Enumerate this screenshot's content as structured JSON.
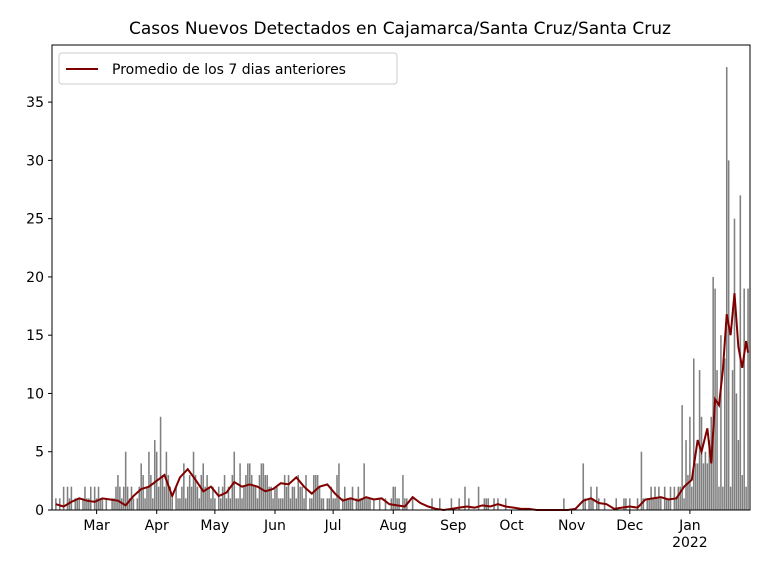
{
  "chart_data": {
    "type": "bar_line",
    "title": "Casos Nuevos Detectados en Cajamarca/Santa Cruz/Santa Cruz",
    "x": [
      38,
      39,
      40,
      41,
      42,
      43,
      44,
      45,
      46,
      47,
      48,
      49,
      50,
      51,
      52,
      53,
      54,
      55,
      56,
      57,
      58,
      59,
      60,
      61,
      62,
      63,
      64,
      65,
      66,
      67,
      68,
      69,
      70,
      71,
      72,
      73,
      74,
      75,
      76,
      77,
      78,
      79,
      80,
      81,
      82,
      83,
      84,
      85,
      86,
      87,
      88,
      89,
      90,
      91,
      92,
      93,
      94,
      95,
      96,
      97,
      98,
      99,
      100,
      101,
      102,
      103,
      104,
      105,
      106,
      107,
      108,
      109,
      110,
      111,
      112,
      113,
      114,
      115,
      116,
      117,
      118,
      119,
      120,
      121,
      122,
      123,
      124,
      125,
      126,
      127,
      128,
      129,
      130,
      131,
      132,
      133,
      134,
      135,
      136,
      137,
      138,
      139,
      140,
      141,
      142,
      143,
      144,
      145,
      146,
      147,
      148,
      149,
      150,
      151,
      152,
      153,
      154,
      155,
      156,
      157,
      158,
      159,
      160,
      161,
      162,
      163,
      164,
      165,
      166,
      167,
      168,
      169,
      170,
      171,
      172,
      173,
      174,
      175,
      176,
      177,
      178,
      179,
      180,
      181,
      182,
      183,
      184,
      185,
      186,
      187,
      188,
      189,
      190,
      191,
      192,
      193,
      194,
      195,
      196,
      197,
      198,
      199,
      200,
      201,
      202,
      203,
      204,
      205,
      206,
      207,
      208,
      209,
      210,
      211,
      212,
      213,
      214,
      215,
      216,
      217,
      218,
      219,
      220,
      221,
      222,
      223,
      224,
      225,
      226,
      227,
      228,
      229,
      230,
      231,
      232,
      233,
      234,
      235,
      236,
      237,
      238,
      239,
      240,
      241,
      242,
      243,
      244,
      245,
      246,
      247,
      248,
      249,
      250,
      251,
      252,
      253,
      254,
      255,
      256,
      257,
      258,
      259,
      260,
      261,
      262,
      263,
      264,
      265,
      266,
      267,
      268,
      269,
      270,
      271,
      272,
      273,
      274,
      275,
      276,
      277,
      278,
      279,
      280,
      281,
      282,
      283,
      284,
      285,
      286,
      287,
      288,
      289,
      290,
      291,
      292,
      293,
      294,
      295,
      296,
      297,
      298,
      299,
      300,
      301,
      302,
      303,
      304,
      305,
      306,
      307,
      308,
      309,
      310,
      311,
      312,
      313,
      314,
      315,
      316,
      317,
      318,
      319,
      320,
      321,
      322,
      323,
      324,
      325,
      326,
      327,
      328,
      329,
      330,
      331,
      332,
      333,
      334,
      335,
      336,
      337,
      338,
      339,
      340,
      341,
      342,
      343,
      344,
      345,
      346,
      347,
      348,
      349,
      350,
      351,
      352,
      353,
      354,
      355,
      356,
      357,
      358,
      359,
      360,
      361,
      362,
      363,
      364,
      365,
      366,
      367,
      368,
      369,
      370,
      371,
      372,
      373,
      374,
      375,
      376,
      377,
      378,
      379,
      380,
      381,
      382,
      383,
      384,
      385,
      386,
      387,
      388,
      389,
      390,
      391,
      392,
      393,
      394,
      395
    ],
    "values": [
      1,
      0,
      1,
      0,
      2,
      0,
      2,
      1,
      2,
      0,
      1,
      1,
      1,
      0,
      1,
      2,
      1,
      1,
      2,
      0,
      2,
      1,
      2,
      1,
      1,
      0,
      1,
      0,
      0,
      1,
      1,
      2,
      3,
      2,
      1,
      2,
      5,
      2,
      1,
      2,
      1,
      0,
      1,
      2,
      4,
      3,
      1,
      2,
      5,
      3,
      1,
      6,
      5,
      2,
      8,
      3,
      2,
      5,
      3,
      2,
      1,
      0,
      2,
      1,
      1,
      2,
      4,
      1,
      2,
      3,
      2,
      5,
      3,
      2,
      1,
      3,
      4,
      2,
      3,
      2,
      1,
      2,
      1,
      0,
      2,
      1,
      2,
      3,
      1,
      2,
      1,
      3,
      5,
      1,
      1,
      4,
      1,
      2,
      3,
      4,
      4,
      3,
      2,
      2,
      1,
      3,
      4,
      4,
      3,
      3,
      2,
      2,
      1,
      2,
      2,
      1,
      1,
      1,
      3,
      2,
      3,
      1,
      2,
      2,
      1,
      3,
      2,
      2,
      1,
      3,
      0,
      1,
      1,
      3,
      3,
      3,
      2,
      1,
      1,
      0,
      1,
      1,
      2,
      1,
      1,
      3,
      4,
      0,
      1,
      2,
      1,
      1,
      1,
      2,
      0,
      1,
      2,
      1,
      1,
      4,
      1,
      1,
      1,
      0,
      1,
      0,
      0,
      1,
      0,
      0,
      1,
      0,
      0,
      1,
      2,
      2,
      1,
      1,
      0,
      3,
      1,
      1,
      0,
      0,
      1,
      0,
      0,
      0,
      0,
      0,
      0,
      0,
      0,
      0,
      1,
      0,
      0,
      0,
      1,
      0,
      0,
      0,
      0,
      0,
      1,
      0,
      0,
      0,
      1,
      0,
      0,
      2,
      0,
      1,
      0,
      0,
      0,
      0,
      2,
      0,
      0,
      1,
      1,
      1,
      0,
      0,
      1,
      0,
      1,
      0,
      0,
      0,
      1,
      0,
      0,
      0,
      0,
      0,
      0,
      0,
      0,
      0,
      0,
      0,
      0,
      0,
      0,
      0,
      0,
      0,
      0,
      0,
      0,
      0,
      0,
      0,
      0,
      0,
      0,
      0,
      0,
      0,
      1,
      0,
      0,
      0,
      0,
      0,
      0,
      0,
      0,
      0,
      4,
      1,
      0,
      1,
      2,
      1,
      0,
      2,
      1,
      0,
      0,
      1,
      0,
      0,
      0,
      0,
      0,
      1,
      0,
      0,
      0,
      1,
      1,
      0,
      1,
      0,
      0,
      0,
      1,
      0,
      5,
      1,
      0,
      1,
      1,
      2,
      1,
      2,
      1,
      2,
      1,
      0,
      2,
      1,
      1,
      2,
      0,
      2,
      1,
      2,
      2,
      9,
      1,
      6,
      3,
      8,
      2,
      13,
      4,
      4,
      12,
      8,
      4,
      5,
      4,
      6,
      8,
      20,
      19,
      12,
      2,
      15,
      2,
      13,
      38,
      30,
      2,
      12,
      25,
      10,
      6,
      27,
      3,
      19,
      2,
      19
    ],
    "color": "#808080",
    "series": [
      {
        "name": "Promedio de los 7 dias anteriores",
        "color": "#800000",
        "x": [
          38,
          42,
          46,
          50,
          54,
          58,
          62,
          66,
          70,
          74,
          78,
          82,
          86,
          90,
          94,
          98,
          102,
          106,
          110,
          114,
          118,
          122,
          126,
          130,
          134,
          138,
          142,
          146,
          150,
          154,
          158,
          162,
          166,
          170,
          174,
          178,
          182,
          186,
          190,
          194,
          198,
          202,
          206,
          210,
          214,
          218,
          222,
          226,
          230,
          234,
          238,
          242,
          246,
          250,
          254,
          258,
          262,
          266,
          270,
          274,
          278,
          282,
          286,
          290,
          294,
          298,
          302,
          306,
          310,
          314,
          318,
          322,
          326,
          330,
          334,
          338,
          342,
          346,
          350,
          354,
          358,
          362,
          366,
          369,
          371,
          374,
          376,
          378,
          380,
          382,
          384,
          386,
          388,
          390,
          392,
          394,
          395
        ],
        "values": [
          0.5,
          0.3,
          0.7,
          1.0,
          0.8,
          0.7,
          1.0,
          0.9,
          0.8,
          0.4,
          1.2,
          1.8,
          2.0,
          2.5,
          3.0,
          1.2,
          2.8,
          3.5,
          2.6,
          1.6,
          2.0,
          1.2,
          1.5,
          2.4,
          2.0,
          2.2,
          2.0,
          1.6,
          1.8,
          2.3,
          2.2,
          2.8,
          2.0,
          1.4,
          2.0,
          2.2,
          1.4,
          0.8,
          1.0,
          0.8,
          1.1,
          0.9,
          1.0,
          0.5,
          0.4,
          0.3,
          1.1,
          0.6,
          0.3,
          0.1,
          0.0,
          0.1,
          0.2,
          0.3,
          0.2,
          0.4,
          0.3,
          0.5,
          0.3,
          0.2,
          0.1,
          0.1,
          0.0,
          0.0,
          0.0,
          0.0,
          0.0,
          0.1,
          0.8,
          1.0,
          0.6,
          0.5,
          0.1,
          0.2,
          0.3,
          0.2,
          0.9,
          1.0,
          1.1,
          0.9,
          1.0,
          2.0,
          2.6,
          6.0,
          5.0,
          7.0,
          4.0,
          9.5,
          9.0,
          12.0,
          16.8,
          15.0,
          18.6,
          14.0,
          12.2,
          14.5,
          13.5
        ]
      }
    ],
    "xlim": [
      36,
      396
    ],
    "xticks": [
      {
        "value": 59,
        "label": "Mar"
      },
      {
        "value": 90,
        "label": "Apr"
      },
      {
        "value": 120,
        "label": "May"
      },
      {
        "value": 151,
        "label": "Jun"
      },
      {
        "value": 181,
        "label": "Jul"
      },
      {
        "value": 212,
        "label": "Aug"
      },
      {
        "value": 243,
        "label": "Sep"
      },
      {
        "value": 273,
        "label": "Oct"
      },
      {
        "value": 304,
        "label": "Nov"
      },
      {
        "value": 334,
        "label": "Dec"
      },
      {
        "value": 365,
        "label": "Jan\n2022"
      }
    ],
    "ylim": [
      0,
      39.9
    ],
    "yticks": [
      0,
      5,
      10,
      15,
      20,
      25,
      30,
      35
    ],
    "legend": "upper left"
  }
}
